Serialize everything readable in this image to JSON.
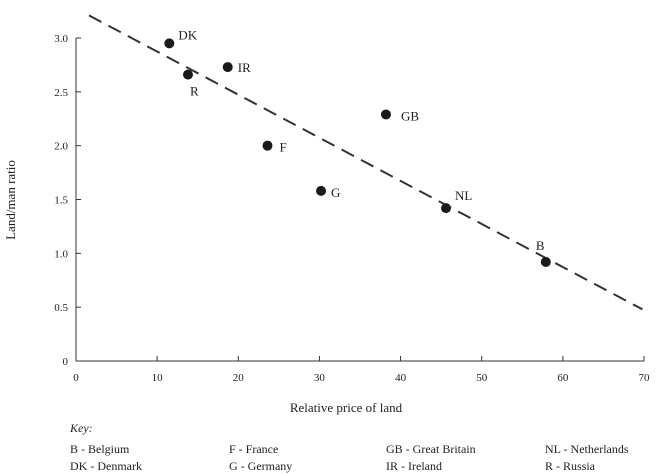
{
  "chart_data": {
    "type": "scatter",
    "title": "",
    "xlabel": "Relative price of land",
    "ylabel": "Land/man ratio",
    "xlim": [
      0,
      70
    ],
    "ylim": [
      0,
      3.0
    ],
    "x_ticks": [
      "0",
      "10",
      "20",
      "30",
      "40",
      "50",
      "60",
      "70"
    ],
    "y_ticks": [
      "0",
      "0.5",
      "1.0",
      "1.5",
      "2.0",
      "2.5",
      "3.0"
    ],
    "grid": false,
    "points": [
      {
        "label": "DK",
        "x": 11.5,
        "y": 2.95
      },
      {
        "label": "R",
        "x": 13.8,
        "y": 2.66
      },
      {
        "label": "IR",
        "x": 18.7,
        "y": 2.73
      },
      {
        "label": "F",
        "x": 23.6,
        "y": 2.0
      },
      {
        "label": "G",
        "x": 30.2,
        "y": 1.58
      },
      {
        "label": "GB",
        "x": 38.2,
        "y": 2.29
      },
      {
        "label": "NL",
        "x": 45.6,
        "y": 1.42
      },
      {
        "label": "B",
        "x": 57.9,
        "y": 0.92
      }
    ],
    "trend_line": {
      "style": "dashed",
      "from": {
        "x": 1.6,
        "y": 3.21
      },
      "to": {
        "x": 69.8,
        "y": 0.48
      }
    },
    "key": {
      "title": "Key:",
      "entries": [
        "B - Belgium",
        "DK - Denmark",
        "F - France",
        "G - Germany",
        "GB - Great Britain",
        "IR - Ireland",
        "NL - Netherlands",
        "R - Russia"
      ]
    }
  }
}
